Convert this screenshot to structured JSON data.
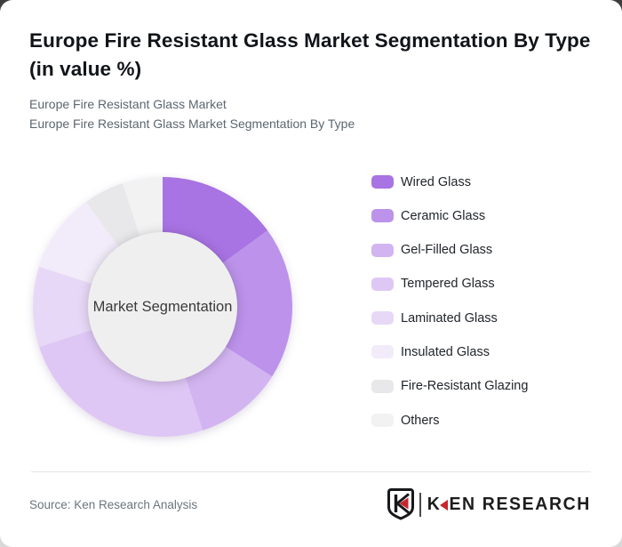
{
  "page": {
    "backdrop_color": "#d9d9d9",
    "card_color": "#ffffff"
  },
  "header": {
    "title": "Europe Fire Resistant Glass Market Segmentation By Type (in value %)",
    "subtitle_line1": "Europe Fire Resistant Glass Market",
    "subtitle_line2": "Europe Fire Resistant Glass Market Segmentation By Type"
  },
  "chart_data": {
    "type": "pie",
    "variant": "donut",
    "title": "Europe Fire Resistant Glass Market Segmentation By Type (in value %)",
    "center_label": "Market Segmentation",
    "categories": [
      "Wired Glass",
      "Ceramic Glass",
      "Gel-Filled Glass",
      "Tempered Glass",
      "Laminated Glass",
      "Insulated Glass",
      "Fire-Resistant Glazing",
      "Others"
    ],
    "values": [
      15,
      19,
      11,
      25,
      10,
      10,
      5,
      5
    ],
    "unit": "% of value (estimated from arc angles; no data labels shown)",
    "colors": [
      "#a873e3",
      "#bc92eb",
      "#d2b4f1",
      "#dfc7f5",
      "#e8d8f7",
      "#f1ebfa",
      "#e8e8ea",
      "#f2f2f3"
    ],
    "start_angle_deg": 0,
    "direction": "clockwise",
    "inner_radius_ratio": 0.575,
    "center_fill": "#efefef",
    "center_text_color": "#3a3a3a",
    "legend_position": "right",
    "data_labels": false,
    "grid": false
  },
  "footer": {
    "source": "Source: Ken Research Analysis",
    "logo": {
      "badge_letter": "K",
      "wordmark_prefix": "K",
      "wordmark_suffix": "EN RESEARCH",
      "red": "#c5272d",
      "black": "#1d1d1d"
    }
  }
}
